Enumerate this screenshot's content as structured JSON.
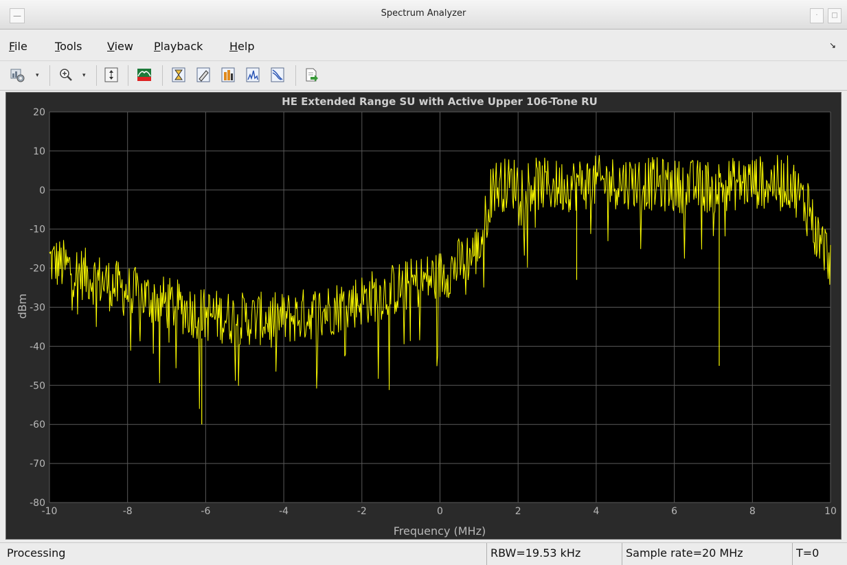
{
  "window": {
    "title": "Spectrum Analyzer",
    "menu_glyph": "—",
    "minimize_glyph": "·",
    "maximize_glyph": "□"
  },
  "menu": [
    {
      "mnemonic": "F",
      "rest": "ile"
    },
    {
      "mnemonic": "T",
      "rest": "ools"
    },
    {
      "mnemonic": "V",
      "rest": "iew"
    },
    {
      "mnemonic": "P",
      "rest": "layback"
    },
    {
      "mnemonic": "H",
      "rest": "elp"
    }
  ],
  "dock_icon": "↘",
  "toolbar": {
    "buttons": [
      "settings-icon",
      "zoom-in-icon",
      "scale-axes-icon",
      "spectrum-settings-icon",
      "cursor-measurements-icon",
      "channel-measurements-icon",
      "distortion-measurements-icon",
      "peak-finder-icon",
      "ccdf-measurements-icon",
      "export-icon"
    ],
    "dropdown_glyph": "▾"
  },
  "chart_data": {
    "type": "line",
    "title": "HE Extended Range SU with Active Upper 106-Tone RU",
    "xlabel": "Frequency (MHz)",
    "ylabel": "dBm",
    "xlim": [
      -10,
      10
    ],
    "ylim": [
      -80,
      20
    ],
    "x_ticks": [
      -10,
      -8,
      -6,
      -4,
      -2,
      0,
      2,
      4,
      6,
      8,
      10
    ],
    "y_ticks": [
      20,
      10,
      0,
      -10,
      -20,
      -30,
      -40,
      -50,
      -60,
      -70,
      -80
    ],
    "grid": true,
    "colors": {
      "background": "#000000",
      "frame": "#2a2a2a",
      "grid": "#5a5a5a",
      "trace": "#ffff00",
      "text": "#cfcfcf"
    },
    "series": [
      {
        "color": "#ffff00",
        "x": [
          -10,
          -9,
          -8,
          -7,
          -6,
          -5,
          -4,
          -3,
          -2,
          -1,
          0,
          0.5,
          1,
          1.2,
          1.4,
          2,
          3,
          4,
          5,
          6,
          7,
          8,
          9,
          9.4,
          9.6,
          9.8,
          10
        ],
        "y": [
          -22,
          -26,
          -30,
          -33,
          -36,
          -37,
          -37,
          -35,
          -32,
          -29,
          -26,
          -23,
          -19,
          -10,
          1,
          2,
          1,
          2,
          2,
          1,
          1,
          2,
          2,
          -5,
          -15,
          -18,
          -22
        ]
      }
    ],
    "annotations": [
      {
        "x": 3.5,
        "y": -23
      },
      {
        "x": 7.15,
        "y": -45
      },
      {
        "x": -6.1,
        "y": -60
      }
    ]
  },
  "status": {
    "left": "Processing",
    "rbw": "RBW=19.53 kHz",
    "sample_rate": "Sample rate=20 MHz",
    "time": "T=0"
  }
}
